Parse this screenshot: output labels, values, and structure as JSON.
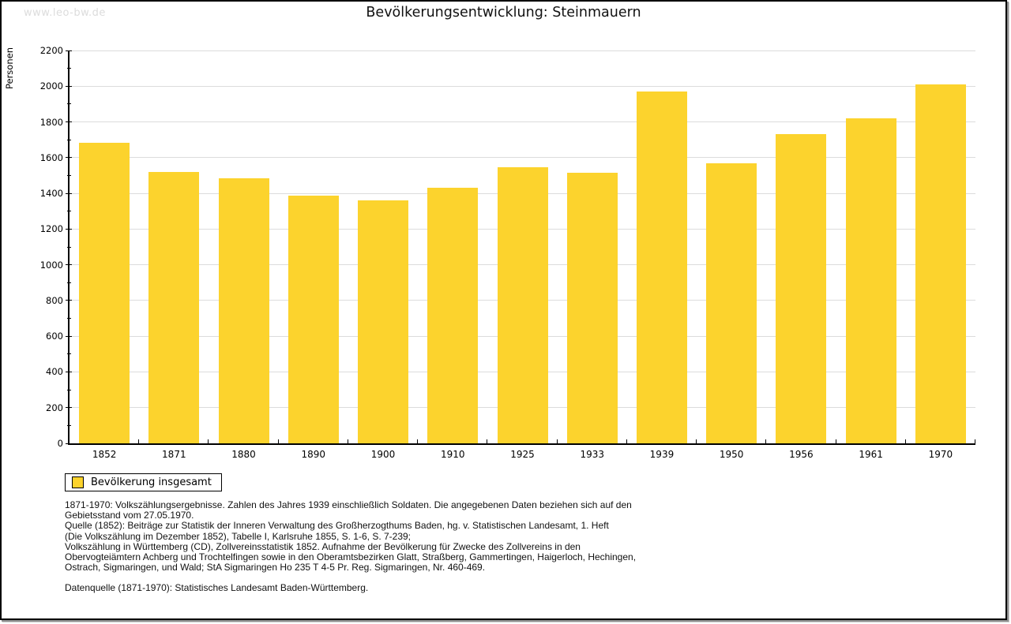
{
  "watermark": "www.leo-bw.de",
  "colors": {
    "bar": "#fcd32d",
    "grid": "#dcdcdc",
    "axis": "#000000",
    "watermark": "#dcdcdc",
    "frame_border": "#000000",
    "frame_shadow": "#8f8f8f"
  },
  "chart_data": {
    "type": "bar",
    "title": "Bevölkerungsentwicklung: Steinmauern",
    "xlabel": "",
    "ylabel": "Personen",
    "categories": [
      "1852",
      "1871",
      "1880",
      "1890",
      "1900",
      "1910",
      "1925",
      "1933",
      "1939",
      "1950",
      "1956",
      "1961",
      "1970"
    ],
    "values": [
      1684,
      1519,
      1486,
      1386,
      1360,
      1432,
      1546,
      1516,
      1972,
      1567,
      1730,
      1821,
      2008
    ],
    "ylim": [
      0,
      2200
    ],
    "ytick_major": 200,
    "ytick_minor": 100,
    "grid": "horizontal",
    "legend_entries": [
      "Bevölkerung insgesamt"
    ],
    "legend_position": "bottom-left",
    "bar_color": "#fcd32d"
  },
  "footer": {
    "lines": [
      "1871-1970: Volkszählungsergebnisse. Zahlen des Jahres 1939 einschließlich Soldaten. Die angegebenen Daten beziehen sich auf den",
      "Gebietsstand vom 27.05.1970.",
      "Quelle (1852): Beiträge zur Statistik der Inneren Verwaltung des Großherzogthums Baden, hg. v. Statistischen Landesamt, 1. Heft",
      "(Die Volkszählung im Dezember 1852), Tabelle I, Karlsruhe 1855, S. 1-6, S. 7-239;",
      "Volkszählung in Württemberg (CD), Zollvereinsstatistik 1852. Aufnahme der Bevölkerung für Zwecke des Zollvereins in den",
      "Obervogteiämtern Achberg und Trochtelfingen sowie in den Oberamtsbezirken Glatt, Straßberg, Gammertingen, Haigerloch, Hechingen,",
      "Ostrach, Sigmaringen, und Wald; StA Sigmaringen Ho 235 T 4-5 Pr. Reg. Sigmaringen, Nr. 460-469."
    ],
    "datasource": "Datenquelle (1871-1970): Statistisches Landesamt Baden-Württemberg."
  }
}
